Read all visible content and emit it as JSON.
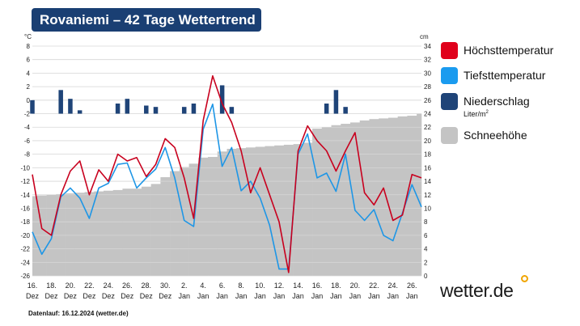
{
  "title": "Rovaniemi – 42 Tage Wettertrend",
  "footer": "Datenlauf: 16.12.2024 (wetter.de)",
  "brand": "wetter.de",
  "legend": {
    "high": "Höchsttemperatur",
    "low": "Tiefsttemperatur",
    "precip": "Niederschlag",
    "precip_unit": "Liter/m",
    "precip_unit_sup": "2",
    "snow": "Schneehöhe"
  },
  "colors": {
    "title_bg": "#1a3f73",
    "high": "#c8001e",
    "low": "#1e96e6",
    "precip": "#1f4478",
    "snow": "#c4c4c4",
    "legend_high": "#e0001b",
    "legend_low": "#1a9bef"
  },
  "chart_data": {
    "type": "line",
    "title": "Rovaniemi – 42 Tage Wettertrend",
    "ylabel_left": "°C",
    "ylabel_right": "cm",
    "ylim_left": [
      -26,
      8
    ],
    "ylim_right": [
      0,
      34
    ],
    "y_ticks_left": [
      8,
      6,
      4,
      2,
      0,
      -2,
      -4,
      -6,
      -8,
      -10,
      -12,
      -14,
      -16,
      -18,
      -20,
      -22,
      -24,
      -26
    ],
    "y_ticks_right": [
      34,
      32,
      30,
      28,
      26,
      24,
      22,
      20,
      18,
      16,
      14,
      12,
      10,
      8,
      6,
      4,
      2,
      0
    ],
    "x_tick_days": [
      "16.",
      "18.",
      "20.",
      "22.",
      "24.",
      "26.",
      "28.",
      "30.",
      "2.",
      "4.",
      "6.",
      "8.",
      "10.",
      "12.",
      "14.",
      "16.",
      "18.",
      "20.",
      "22.",
      "24.",
      "26."
    ],
    "x_tick_months": [
      "Dez",
      "Dez",
      "Dez",
      "Dez",
      "Dez",
      "Dez",
      "Dez",
      "Dez",
      "Jan",
      "Jan",
      "Jan",
      "Jan",
      "Jan",
      "Jan",
      "Jan",
      "Jan",
      "Jan",
      "Jan",
      "Jan",
      "Jan",
      "Jan"
    ],
    "series": [
      {
        "name": "Höchsttemperatur",
        "axis": "left",
        "values": [
          -11,
          -19,
          -20,
          -14,
          -10.5,
          -9,
          -14,
          -10.3,
          -12,
          -8,
          -9,
          -8.5,
          -11.3,
          -9.5,
          -5.7,
          -7,
          -11.5,
          -17.5,
          -3,
          3.6,
          -0.5,
          -3.3,
          -7.5,
          -13.7,
          -10,
          -14,
          -18,
          -25.5,
          -7.5,
          -3.8,
          -6,
          -7.5,
          -10.5,
          -7.5,
          -4.8,
          -13.7,
          -15.5,
          -13,
          -17.8,
          -17,
          -11,
          -11.5
        ]
      },
      {
        "name": "Tiefsttemperatur",
        "axis": "left",
        "values": [
          -19.5,
          -22.8,
          -20.5,
          -14.3,
          -13,
          -14.5,
          -17.5,
          -13,
          -12.3,
          -9.5,
          -9.3,
          -13,
          -11.5,
          -10.2,
          -7,
          -11.5,
          -17.8,
          -18.7,
          -4.3,
          -0.6,
          -9.8,
          -7,
          -13.4,
          -12,
          -14.5,
          -18.5,
          -25,
          -25,
          -8,
          -5,
          -11.5,
          -10.8,
          -13.5,
          -8,
          -16.3,
          -17.8,
          -16.2,
          -20,
          -20.8,
          -16.7,
          -12.5,
          -15.8
        ]
      },
      {
        "name": "Niederschlag",
        "axis": "right",
        "type": "bar",
        "values": [
          2,
          0,
          0,
          3.5,
          2.2,
          0.5,
          0,
          0,
          0,
          1.5,
          2.2,
          0,
          1.2,
          1,
          0,
          0,
          1,
          1.5,
          0,
          0,
          4.2,
          1,
          0,
          0,
          0,
          0,
          0,
          0,
          0,
          0,
          0,
          1.5,
          3.5,
          1,
          0,
          0,
          0,
          0,
          0,
          0,
          0,
          0
        ]
      },
      {
        "name": "Schneehöhe",
        "axis": "right",
        "type": "area",
        "values": [
          11.8,
          11.9,
          12,
          12.1,
          12.2,
          12.3,
          12.4,
          12.5,
          12.6,
          12.7,
          12.9,
          12.9,
          13.2,
          13.6,
          14.6,
          15.5,
          16.1,
          16.6,
          17.5,
          17.6,
          18.4,
          18.8,
          18.9,
          19,
          19.1,
          19.2,
          19.3,
          19.4,
          19.5,
          19.7,
          21.8,
          22,
          22.3,
          22.5,
          22.7,
          23,
          23.2,
          23.3,
          23.4,
          23.6,
          23.7,
          24
        ]
      }
    ]
  }
}
